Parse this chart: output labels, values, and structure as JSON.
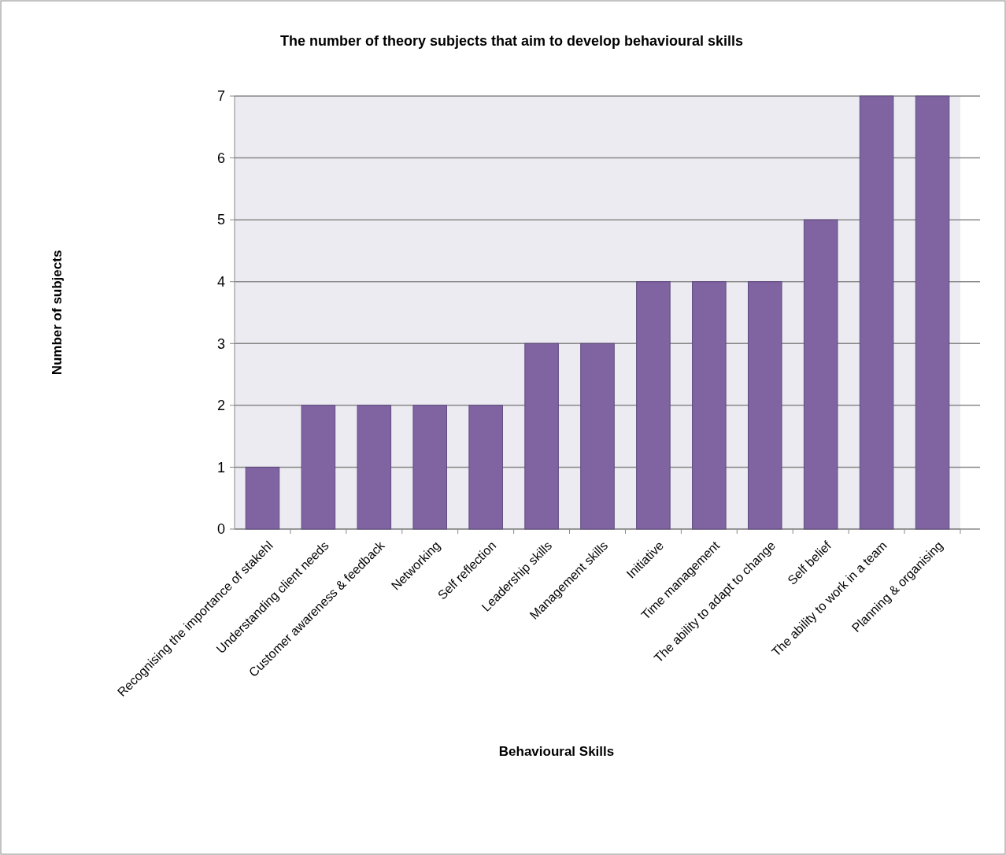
{
  "chart_data": {
    "type": "bar",
    "title": "The number of theory subjects that aim to develop behavioural skills",
    "xlabel": "Behavioural Skills",
    "ylabel": "Number of  subjects",
    "categories": [
      "Recognising the importance of stakehl",
      "Understanding client needs",
      "Customer awareness & feedback",
      "Networking",
      "Self reflection",
      "Leadership skills",
      "Management skills",
      "Initiative",
      "Time management",
      "The ability to adapt to change",
      "Self belief",
      "The ability to work in a team",
      "Planning & organising"
    ],
    "values": [
      1,
      2,
      2,
      2,
      2,
      3,
      3,
      4,
      4,
      4,
      5,
      7,
      7
    ],
    "color": "#8064a2",
    "ylim": [
      0,
      7
    ],
    "yticks": [
      0,
      1,
      2,
      3,
      4,
      5,
      6,
      7
    ],
    "grid": "y"
  }
}
